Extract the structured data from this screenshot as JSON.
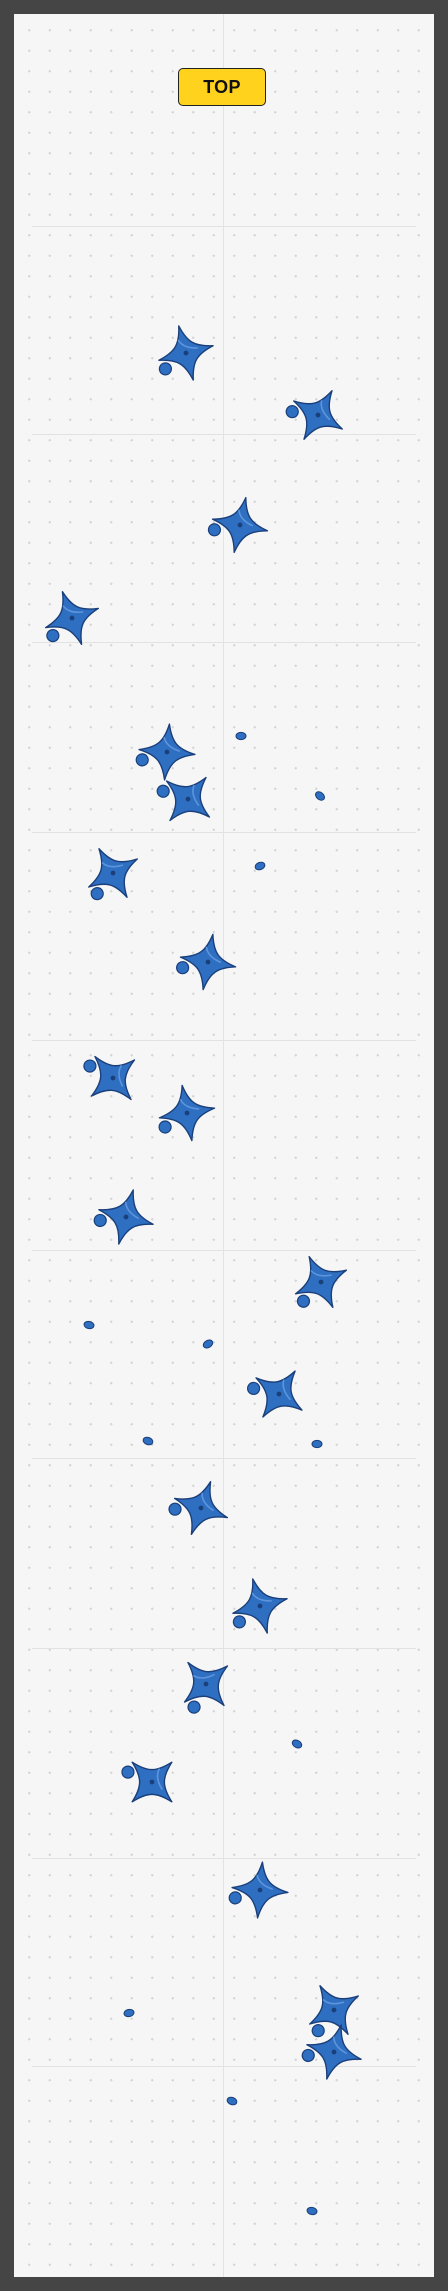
{
  "wall": {
    "top_label": "TOP",
    "colors": {
      "frame": "#454545",
      "wall": "#f6f6f6",
      "top_badge": "#ffd21e",
      "hold": "#2f6fc2",
      "hold_dark": "#1a3f7a"
    }
  }
}
